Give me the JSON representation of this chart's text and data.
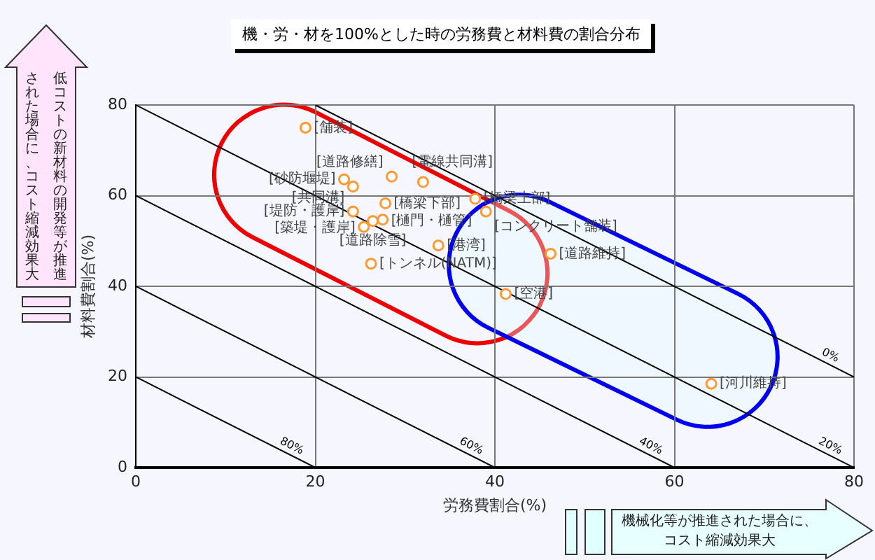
{
  "chart_data": {
    "type": "scatter",
    "title": "機・労・材を100%とした時の労務費と材料費の割合分布",
    "xlabel": "労務費割合(%)",
    "ylabel": "材料費割合(%)",
    "xlim": [
      0,
      80
    ],
    "ylim": [
      0,
      80
    ],
    "xticks": [
      0,
      20,
      40,
      60,
      80
    ],
    "yticks": [
      0,
      20,
      40,
      60,
      80
    ],
    "grid": true,
    "legend": false,
    "series": [
      {
        "type": "scatter",
        "marker": "circle",
        "color": "#ff9933",
        "x": [
          18.9,
          23.2,
          24.2,
          28.5,
          32,
          37.8,
          27.8,
          24.2,
          25.4,
          26.4,
          27.5,
          39,
          33.7,
          26.2,
          46.2,
          41.2,
          64.1
        ],
        "values": [
          75,
          63.6,
          62,
          64.2,
          63,
          59.3,
          58.3,
          56.5,
          53.1,
          54.4,
          54.7,
          56.5,
          49,
          45,
          47.2,
          38.3,
          18.5
        ]
      },
      {
        "type": "line",
        "marker": "none",
        "name": "0%",
        "color": "#000000",
        "x": [
          20,
          80
        ],
        "values": [
          80,
          20
        ]
      },
      {
        "type": "line",
        "marker": "none",
        "name": "20%",
        "color": "#000000",
        "x": [
          0,
          80
        ],
        "values": [
          80,
          0
        ]
      },
      {
        "type": "line",
        "marker": "none",
        "name": "40%",
        "color": "#000000",
        "x": [
          0,
          60
        ],
        "values": [
          60,
          0
        ]
      },
      {
        "type": "line",
        "marker": "none",
        "name": "60%",
        "color": "#000000",
        "x": [
          0,
          40
        ],
        "values": [
          40,
          0
        ]
      },
      {
        "type": "line",
        "marker": "none",
        "name": "80%",
        "color": "#000000",
        "x": [
          0,
          20
        ],
        "values": [
          20,
          0
        ]
      }
    ],
    "annotations": [
      {
        "text": "[舗装]",
        "x": 18.9,
        "y": 75
      },
      {
        "text": "[砂防堰堤]",
        "x": 23.2,
        "y": 63.6
      },
      {
        "text": "[共同溝]",
        "x": 24.2,
        "y": 62
      },
      {
        "text": "[道路修繕]",
        "x": 28.5,
        "y": 64.2
      },
      {
        "text": "[電線共同溝]",
        "x": 32,
        "y": 63
      },
      {
        "text": "[橋梁上部]",
        "x": 37.8,
        "y": 59.3
      },
      {
        "text": "[橋梁下部]",
        "x": 27.8,
        "y": 58.3
      },
      {
        "text": "[堤防・護岸]",
        "x": 24.2,
        "y": 56.5
      },
      {
        "text": "[築堤・護岸]",
        "x": 25.4,
        "y": 53.1
      },
      {
        "text": "[道路除雪]",
        "x": 26.4,
        "y": 54.4
      },
      {
        "text": "[樋門・樋管]",
        "x": 27.5,
        "y": 54.7
      },
      {
        "text": "[コンクリート舗装]",
        "x": 39,
        "y": 56.5
      },
      {
        "text": "[港湾]",
        "x": 33.7,
        "y": 49
      },
      {
        "text": "[トンネル(NATM)]",
        "x": 26.2,
        "y": 45
      },
      {
        "text": "[道路維持]",
        "x": 46.2,
        "y": 47.2
      },
      {
        "text": "[空港]",
        "x": 41.2,
        "y": 38.3
      },
      {
        "text": "[河川維持]",
        "x": 64.1,
        "y": 18.5
      },
      "低コストの新材料の開発等が推進された場合に、コスト縮減効果大",
      "機械化等が推進された場合に、コスト縮減効果大"
    ]
  }
}
